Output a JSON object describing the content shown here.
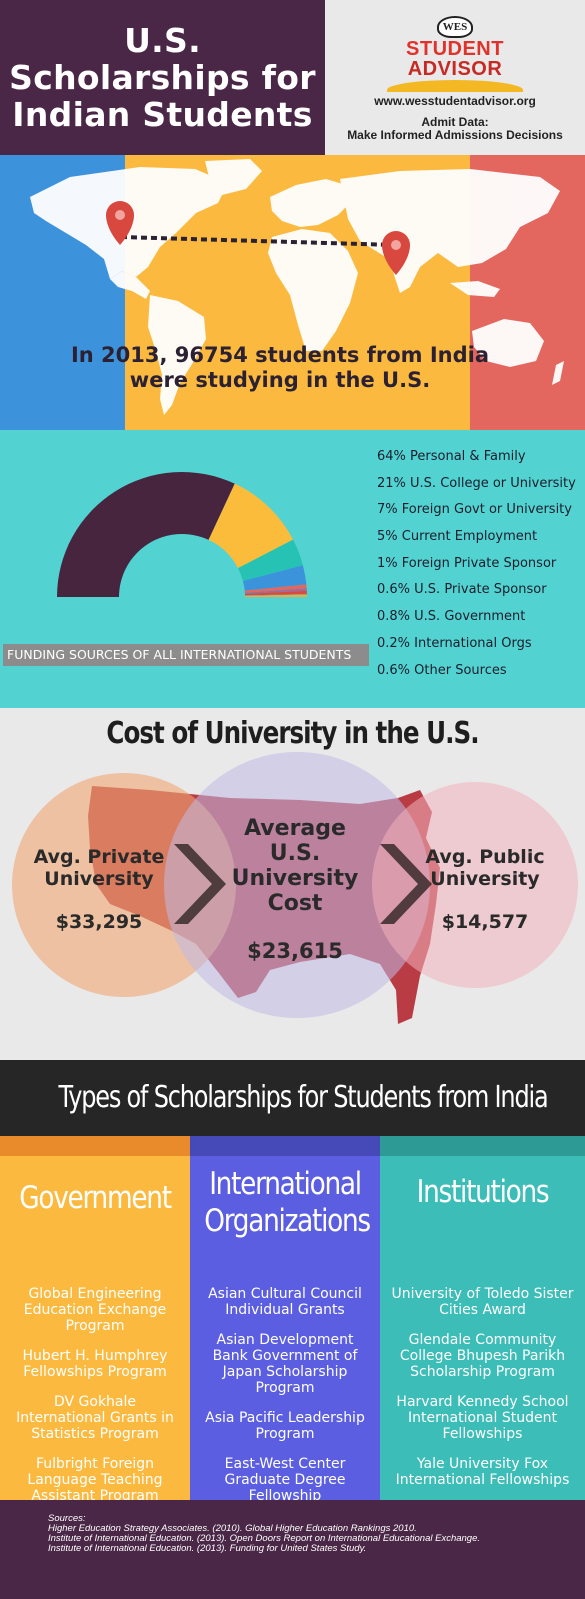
{
  "header": {
    "title_lines": [
      "U.S.",
      "Scholarships for",
      "Indian Students"
    ],
    "logo": {
      "badge": "WES",
      "line1": "STUDENT",
      "line2": "ADVISOR"
    },
    "url": "www.wesstudentadvisor.org",
    "admit_line1": "Admit Data:",
    "admit_line2": "Make Informed Admissions Decisions"
  },
  "map": {
    "stat_line1": "In 2013, 96754 students from India",
    "stat_line2": "were studying in the U.S.",
    "colors": {
      "left": "#3d92dc",
      "middle": "#fbba3f",
      "right": "#e3675f",
      "land": "#ffffff",
      "pin": "#d9483f"
    }
  },
  "funding": {
    "caption": "FUNDING SOURCES OF ALL INTERNATIONAL STUDENTS",
    "legend": [
      "64% Personal & Family",
      "21% U.S. College or University",
      "7% Foreign Govt or University",
      "5% Current Employment",
      "1% Foreign Private Sponsor",
      "0.6% U.S. Private Sponsor",
      "0.8% U.S. Government",
      "0.2% International Orgs",
      "0.6% Other Sources"
    ]
  },
  "chart_data": {
    "type": "pie",
    "variant": "half-donut",
    "categories": [
      "Personal & Family",
      "U.S. College or University",
      "Foreign Govt or University",
      "Current Employment",
      "Foreign Private Sponsor",
      "U.S. Private Sponsor",
      "U.S. Government",
      "International Orgs",
      "Other Sources"
    ],
    "values": [
      64,
      21,
      7,
      5,
      1,
      0.6,
      0.8,
      0.2,
      0.6
    ],
    "colors": [
      "#47253f",
      "#fbbc3c",
      "#26c2b4",
      "#3b93db",
      "#e6665c",
      "#9b6b9c",
      "#d84a40",
      "#8a8a8a",
      "#f0ab3a"
    ],
    "title": "FUNDING SOURCES OF ALL INTERNATIONAL STUDENTS"
  },
  "cost": {
    "title": "Cost of University in the U.S.",
    "private_label": [
      "Avg. Private",
      "University"
    ],
    "private_value": "$33,295",
    "average_label": [
      "Average",
      "U.S.",
      "University",
      "Cost"
    ],
    "average_value": "$23,615",
    "public_label": [
      "Avg. Public",
      "University"
    ],
    "public_value": "$14,577"
  },
  "types_title": "Types of Scholarships for Students from India",
  "columns": [
    {
      "heading": [
        "Government"
      ],
      "items": [
        "Global Engineering Education Exchange Program",
        "Hubert H. Humphrey Fellowships Program",
        "DV Gokhale International Grants in Statistics Program",
        "Fulbright Foreign Language Teaching Assistant Program"
      ],
      "color": "#fbba3f",
      "bar_color": "#e98a2b"
    },
    {
      "heading": [
        "International",
        "Organizations"
      ],
      "items": [
        "Asian Cultural Council Individual Grants",
        "Asian Development Bank Government of Japan Scholarship Program",
        "Asia Pacific Leadership Program",
        "East-West Center Graduate Degree Fellowship"
      ],
      "color": "#5b5ee0",
      "bar_color": "#4649b8"
    },
    {
      "heading": [
        "Institutions"
      ],
      "items": [
        "University of Toledo Sister Cities Award",
        "Glendale Community College Bhupesh Parikh Scholarship Program",
        "Harvard Kennedy School International Student Fellowships",
        "Yale University Fox International Fellowships"
      ],
      "color": "#3cbdb8",
      "bar_color": "#2e9a96"
    }
  ],
  "footer": {
    "sources": [
      "Sources:",
      "Higher Education Strategy Associates. (2010). Global Higher Education Rankings 2010.",
      "Institute of International Education. (2013). Open Doors Report on International Educational Exchange.",
      "Institute of International Education. (2013). Funding for United States Study."
    ]
  }
}
